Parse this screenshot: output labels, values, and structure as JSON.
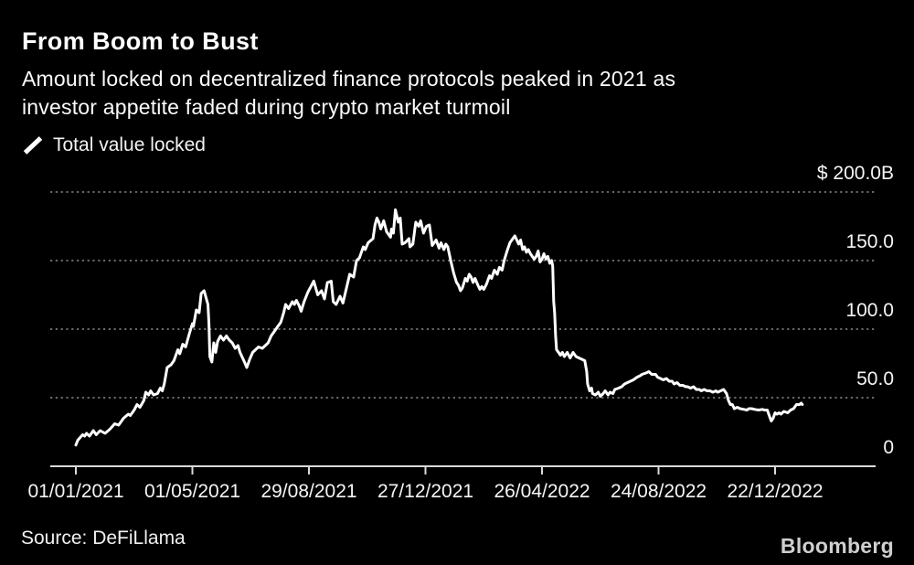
{
  "header": {
    "title": "From Boom to Bust",
    "subtitle_lines": [
      "Amount locked on decentralized finance protocols peaked in 2021 as",
      "investor appetite faded during crypto market turmoil"
    ]
  },
  "legend": {
    "marker": "line-slash-icon",
    "label": "Total value locked"
  },
  "footer": {
    "source": "Source: DeFiLlama",
    "brand": "Bloomberg"
  },
  "colors": {
    "background": "#000000",
    "text": "#ffffff",
    "line": "#ffffff",
    "grid": "#8a8a8a",
    "axis": "#d9d9d9",
    "brand_gray": "#cfcfcf"
  },
  "chart_data": {
    "type": "line",
    "title": "Total value locked",
    "unit": "USD billions",
    "ylim": [
      0,
      200
    ],
    "grid": "dotted-horizontal",
    "legend_position": "top-left",
    "x_start_date": "01/01/2021",
    "x_unit": "days since 01/01/2021",
    "yticks": [
      {
        "value": 200,
        "label": "$ 200.0B"
      },
      {
        "value": 150,
        "label": "150.0"
      },
      {
        "value": 100,
        "label": "100.0"
      },
      {
        "value": 50,
        "label": "50.0"
      },
      {
        "value": 0,
        "label": "0"
      }
    ],
    "xticks": [
      {
        "day": 0,
        "label": "01/01/2021"
      },
      {
        "day": 120,
        "label": "01/05/2021"
      },
      {
        "day": 240,
        "label": "29/08/2021"
      },
      {
        "day": 360,
        "label": "27/12/2021"
      },
      {
        "day": 480,
        "label": "26/04/2022"
      },
      {
        "day": 600,
        "label": "24/08/2022"
      },
      {
        "day": 720,
        "label": "22/12/2022"
      }
    ],
    "series": [
      {
        "name": "Total value locked",
        "points": [
          [
            0,
            15.5
          ],
          [
            2,
            19
          ],
          [
            7,
            23
          ],
          [
            9,
            22
          ],
          [
            11,
            24
          ],
          [
            14,
            22
          ],
          [
            18,
            26
          ],
          [
            21,
            23
          ],
          [
            25,
            26
          ],
          [
            30,
            24
          ],
          [
            35,
            27
          ],
          [
            40,
            31
          ],
          [
            44,
            30
          ],
          [
            49,
            35
          ],
          [
            54,
            38
          ],
          [
            56,
            37
          ],
          [
            60,
            41
          ],
          [
            63,
            45
          ],
          [
            66,
            43
          ],
          [
            70,
            48
          ],
          [
            72,
            54
          ],
          [
            75,
            52
          ],
          [
            77,
            55
          ],
          [
            80,
            52
          ],
          [
            84,
            53
          ],
          [
            87,
            57
          ],
          [
            89,
            55
          ],
          [
            91,
            60
          ],
          [
            94,
            72
          ],
          [
            98,
            74
          ],
          [
            101,
            77
          ],
          [
            105,
            85
          ],
          [
            107,
            82
          ],
          [
            110,
            89
          ],
          [
            113,
            87
          ],
          [
            117,
            97
          ],
          [
            120,
            104
          ],
          [
            121,
            102
          ],
          [
            124,
            114
          ],
          [
            127,
            112
          ],
          [
            129,
            126
          ],
          [
            132,
            128
          ],
          [
            136,
            118
          ],
          [
            137,
            104
          ],
          [
            138,
            80
          ],
          [
            140,
            76
          ],
          [
            142,
            90
          ],
          [
            144,
            83
          ],
          [
            146,
            91
          ],
          [
            149,
            95
          ],
          [
            152,
            92
          ],
          [
            155,
            95
          ],
          [
            158,
            92
          ],
          [
            161,
            90
          ],
          [
            164,
            86
          ],
          [
            167,
            88
          ],
          [
            169,
            83
          ],
          [
            171,
            80
          ],
          [
            173,
            77
          ],
          [
            176,
            72
          ],
          [
            179,
            78
          ],
          [
            182,
            83
          ],
          [
            185,
            85
          ],
          [
            188,
            87
          ],
          [
            192,
            86
          ],
          [
            195,
            88
          ],
          [
            198,
            90
          ],
          [
            201,
            95
          ],
          [
            204,
            98
          ],
          [
            207,
            101
          ],
          [
            211,
            105
          ],
          [
            214,
            112
          ],
          [
            216,
            118
          ],
          [
            219,
            115
          ],
          [
            223,
            120
          ],
          [
            225,
            118
          ],
          [
            227,
            121
          ],
          [
            230,
            117
          ],
          [
            232,
            113
          ],
          [
            235,
            120
          ],
          [
            239,
            127
          ],
          [
            245,
            135
          ],
          [
            249,
            125
          ],
          [
            253,
            128
          ],
          [
            256,
            122
          ],
          [
            259,
            134
          ],
          [
            263,
            135
          ],
          [
            265,
            120
          ],
          [
            268,
            118
          ],
          [
            272,
            124
          ],
          [
            275,
            119
          ],
          [
            280,
            134
          ],
          [
            282,
            140
          ],
          [
            286,
            138
          ],
          [
            289,
            150
          ],
          [
            292,
            152
          ],
          [
            296,
            160
          ],
          [
            298,
            158
          ],
          [
            301,
            163
          ],
          [
            306,
            166
          ],
          [
            308,
            176
          ],
          [
            310,
            181
          ],
          [
            312,
            178
          ],
          [
            314,
            173
          ],
          [
            317,
            179
          ],
          [
            320,
            171
          ],
          [
            324,
            167
          ],
          [
            325,
            173
          ],
          [
            327,
            170
          ],
          [
            329,
            187
          ],
          [
            332,
            178
          ],
          [
            334,
            181
          ],
          [
            336,
            162
          ],
          [
            339,
            163
          ],
          [
            343,
            166
          ],
          [
            344,
            160
          ],
          [
            347,
            162
          ],
          [
            350,
            178
          ],
          [
            353,
            175
          ],
          [
            355,
            179
          ],
          [
            358,
            170
          ],
          [
            361,
            175
          ],
          [
            364,
            176
          ],
          [
            367,
            161
          ],
          [
            371,
            165
          ],
          [
            374,
            159
          ],
          [
            376,
            163
          ],
          [
            379,
            158
          ],
          [
            381,
            162
          ],
          [
            383,
            160
          ],
          [
            386,
            150
          ],
          [
            389,
            141
          ],
          [
            392,
            134
          ],
          [
            394,
            132
          ],
          [
            396,
            128
          ],
          [
            398,
            130
          ],
          [
            401,
            137
          ],
          [
            403,
            135
          ],
          [
            405,
            140
          ],
          [
            407,
            138
          ],
          [
            409,
            134
          ],
          [
            411,
            137
          ],
          [
            414,
            132
          ],
          [
            416,
            129
          ],
          [
            418,
            131
          ],
          [
            420,
            129
          ],
          [
            423,
            133
          ],
          [
            426,
            139
          ],
          [
            428,
            137
          ],
          [
            431,
            143
          ],
          [
            434,
            140
          ],
          [
            436,
            145
          ],
          [
            439,
            143
          ],
          [
            441,
            150
          ],
          [
            444,
            157
          ],
          [
            447,
            163
          ],
          [
            450,
            166
          ],
          [
            452,
            168
          ],
          [
            454,
            165
          ],
          [
            456,
            162
          ],
          [
            458,
            165
          ],
          [
            460,
            158
          ],
          [
            462,
            160
          ],
          [
            464,
            156
          ],
          [
            466,
            158
          ],
          [
            468,
            155
          ],
          [
            470,
            153
          ],
          [
            472,
            151
          ],
          [
            474,
            153
          ],
          [
            476,
            157
          ],
          [
            478,
            149
          ],
          [
            480,
            151
          ],
          [
            482,
            155
          ],
          [
            484,
            151
          ],
          [
            486,
            153
          ],
          [
            488,
            148
          ],
          [
            490,
            150
          ],
          [
            491,
            146
          ],
          [
            492,
            120
          ],
          [
            493,
            112
          ],
          [
            494,
            95
          ],
          [
            495,
            85
          ],
          [
            497,
            83
          ],
          [
            499,
            81
          ],
          [
            501,
            83
          ],
          [
            503,
            80
          ],
          [
            506,
            83
          ],
          [
            509,
            79
          ],
          [
            512,
            83
          ],
          [
            515,
            80
          ],
          [
            518,
            79
          ],
          [
            521,
            78
          ],
          [
            524,
            77
          ],
          [
            526,
            69
          ],
          [
            527,
            60
          ],
          [
            529,
            55
          ],
          [
            531,
            57
          ],
          [
            532,
            53
          ],
          [
            535,
            52
          ],
          [
            538,
            54
          ],
          [
            540,
            51
          ],
          [
            543,
            53
          ],
          [
            545,
            55
          ],
          [
            548,
            52
          ],
          [
            550,
            54
          ],
          [
            553,
            53
          ],
          [
            555,
            56
          ],
          [
            559,
            57
          ],
          [
            562,
            58
          ],
          [
            565,
            60
          ],
          [
            568,
            61
          ],
          [
            571,
            62
          ],
          [
            574,
            63
          ],
          [
            578,
            65
          ],
          [
            581,
            66
          ],
          [
            583,
            67
          ],
          [
            587,
            68
          ],
          [
            590,
            69
          ],
          [
            593,
            67
          ],
          [
            597,
            67
          ],
          [
            599,
            65
          ],
          [
            602,
            64
          ],
          [
            605,
            63
          ],
          [
            608,
            64
          ],
          [
            611,
            62
          ],
          [
            614,
            62
          ],
          [
            616,
            60
          ],
          [
            619,
            61
          ],
          [
            622,
            59
          ],
          [
            625,
            59
          ],
          [
            628,
            58
          ],
          [
            630,
            58
          ],
          [
            633,
            57
          ],
          [
            636,
            58
          ],
          [
            639,
            56
          ],
          [
            642,
            56
          ],
          [
            644,
            55
          ],
          [
            647,
            56
          ],
          [
            650,
            55
          ],
          [
            653,
            55
          ],
          [
            656,
            54
          ],
          [
            659,
            55
          ],
          [
            661,
            54
          ],
          [
            664,
            55
          ],
          [
            667,
            56
          ],
          [
            670,
            53
          ],
          [
            672,
            48
          ],
          [
            674,
            45
          ],
          [
            676,
            45
          ],
          [
            678,
            42
          ],
          [
            681,
            43
          ],
          [
            684,
            42
          ],
          [
            688,
            41.5
          ],
          [
            691,
            41
          ],
          [
            693,
            42
          ],
          [
            696,
            42
          ],
          [
            699,
            41.5
          ],
          [
            703,
            41
          ],
          [
            707,
            41.5
          ],
          [
            709,
            41
          ],
          [
            712,
            41
          ],
          [
            714,
            37
          ],
          [
            716,
            33
          ],
          [
            718,
            35
          ],
          [
            720,
            39
          ],
          [
            722,
            38
          ],
          [
            724,
            39
          ],
          [
            726,
            38
          ],
          [
            729,
            40
          ],
          [
            733,
            39
          ],
          [
            736,
            41
          ],
          [
            739,
            42
          ],
          [
            742,
            45
          ],
          [
            745,
            45
          ],
          [
            747,
            46
          ],
          [
            748,
            45
          ]
        ]
      }
    ]
  }
}
